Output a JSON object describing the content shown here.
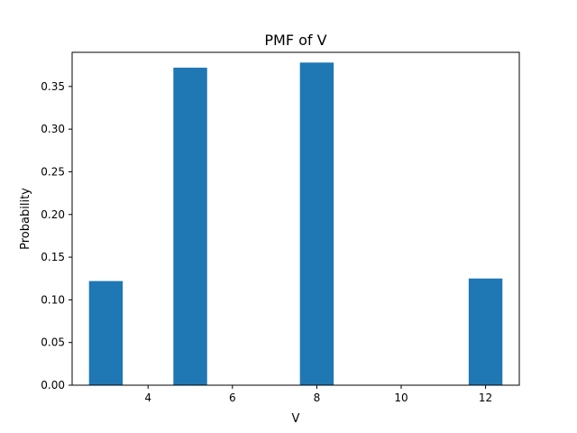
{
  "chart_data": {
    "type": "bar",
    "title": "PMF of V",
    "xlabel": "V",
    "ylabel": "Probability",
    "x": [
      3,
      5,
      8,
      12
    ],
    "values": [
      0.122,
      0.372,
      0.378,
      0.125
    ],
    "bar_width": 0.8,
    "xlim": [
      2.2,
      12.8
    ],
    "ylim": [
      0,
      0.39
    ],
    "xticks": [
      4,
      6,
      8,
      10,
      12
    ],
    "yticks": [
      0.0,
      0.05,
      0.1,
      0.15,
      0.2,
      0.25,
      0.3,
      0.35
    ],
    "ytick_labels": [
      "0.00",
      "0.05",
      "0.10",
      "0.15",
      "0.20",
      "0.25",
      "0.30",
      "0.35"
    ],
    "grid": false,
    "bar_color": "#1f77b4"
  }
}
